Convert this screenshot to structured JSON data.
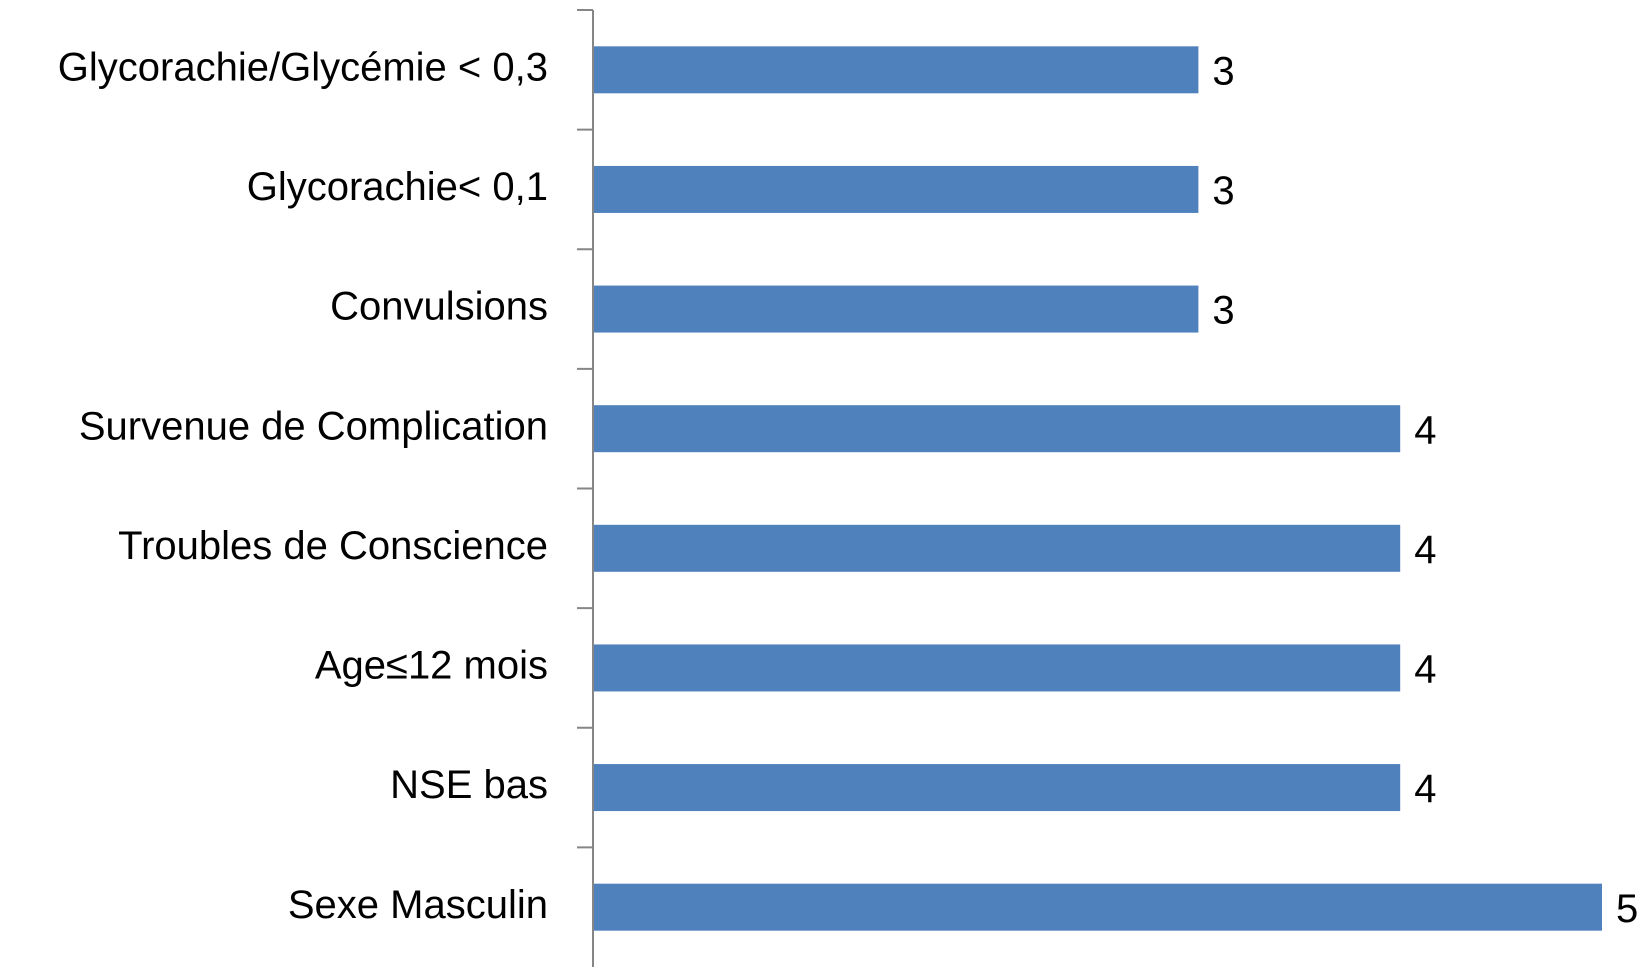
{
  "chart_data": {
    "type": "bar",
    "orientation": "horizontal",
    "categories": [
      "Glycorachie/Glycémie < 0,3",
      "Glycorachie< 0,1",
      "Convulsions",
      "Survenue de Complication",
      "Troubles de Conscience",
      "Age≤12 mois",
      "NSE bas",
      "Sexe Masculin"
    ],
    "values": [
      3,
      3,
      3,
      4,
      4,
      4,
      4,
      5
    ],
    "color": "#4f81bd"
  }
}
